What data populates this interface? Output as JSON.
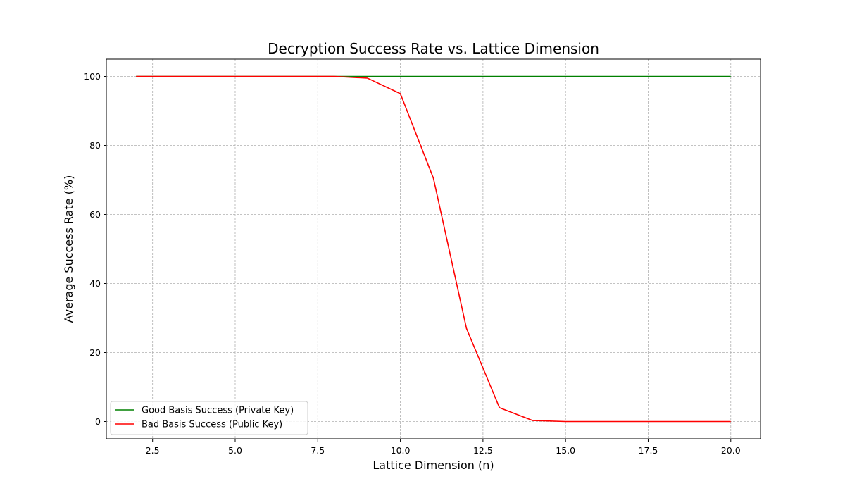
{
  "chart_data": {
    "type": "line",
    "title": "Decryption Success Rate vs. Lattice Dimension",
    "xlabel": "Lattice Dimension (n)",
    "ylabel": "Average Success Rate (%)",
    "xlim": [
      1.1,
      20.9
    ],
    "ylim": [
      -5,
      105
    ],
    "x_ticks": [
      2.5,
      5.0,
      7.5,
      10.0,
      12.5,
      15.0,
      17.5,
      20.0
    ],
    "x_tick_labels": [
      "2.5",
      "5.0",
      "7.5",
      "10.0",
      "12.5",
      "15.0",
      "17.5",
      "20.0"
    ],
    "y_ticks": [
      0,
      20,
      40,
      60,
      80,
      100
    ],
    "y_tick_labels": [
      "0",
      "20",
      "40",
      "60",
      "80",
      "100"
    ],
    "grid": true,
    "legend_position": "lower-left",
    "x": [
      2,
      3,
      4,
      5,
      6,
      7,
      8,
      9,
      10,
      11,
      12,
      13,
      14,
      15,
      16,
      17,
      18,
      19,
      20
    ],
    "series": [
      {
        "name": "Good Basis Success (Private Key)",
        "color": "#008000",
        "values": [
          100,
          100,
          100,
          100,
          100,
          100,
          100,
          100,
          100,
          100,
          100,
          100,
          100,
          100,
          100,
          100,
          100,
          100,
          100
        ]
      },
      {
        "name": "Bad Basis Success (Public Key)",
        "color": "#ff0000",
        "values": [
          100,
          100,
          100,
          100,
          100,
          100,
          100,
          99.5,
          95,
          70.5,
          27,
          4,
          0.3,
          0,
          0,
          0,
          0,
          0,
          0
        ]
      }
    ]
  }
}
